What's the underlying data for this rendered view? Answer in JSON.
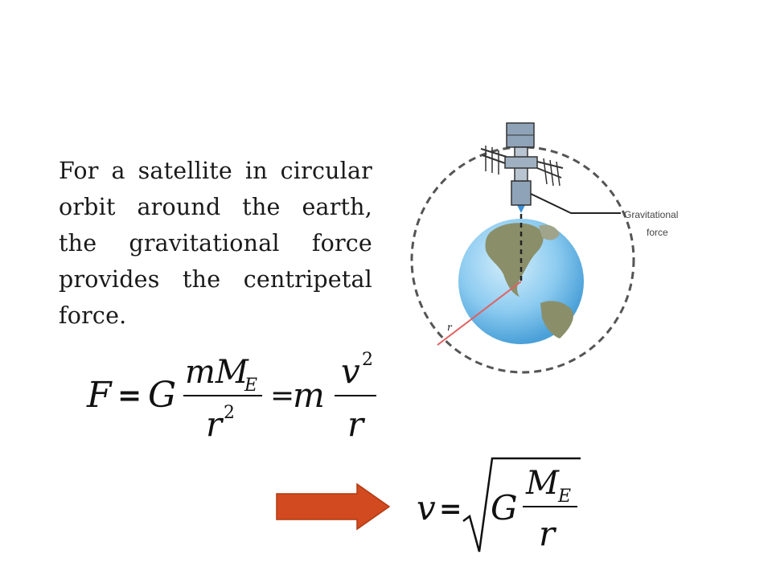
{
  "description_text": "For a satellite in circular orbit around the earth, the gravitational force provides the centripetal force.",
  "diagram": {
    "label_gravitational": "Gravitational",
    "label_force": "force",
    "label_r": "r"
  },
  "equation1": {
    "F": "F",
    "equals": "=",
    "G": "G",
    "num1": "mM",
    "num1_sub": "E",
    "den1": "r",
    "den1_sup": "2",
    "equals2": "=",
    "m": "m",
    "num2": "v",
    "num2_sup": "2",
    "den2": "r"
  },
  "equation2": {
    "v": "v",
    "equals": "=",
    "G": "G",
    "num": "M",
    "num_sub": "E",
    "den": "r"
  },
  "colors": {
    "arrow": "#d24a1f",
    "orbit": "#555555",
    "radius": "#e06060",
    "gravity_arrow": "#3a8fd6"
  }
}
